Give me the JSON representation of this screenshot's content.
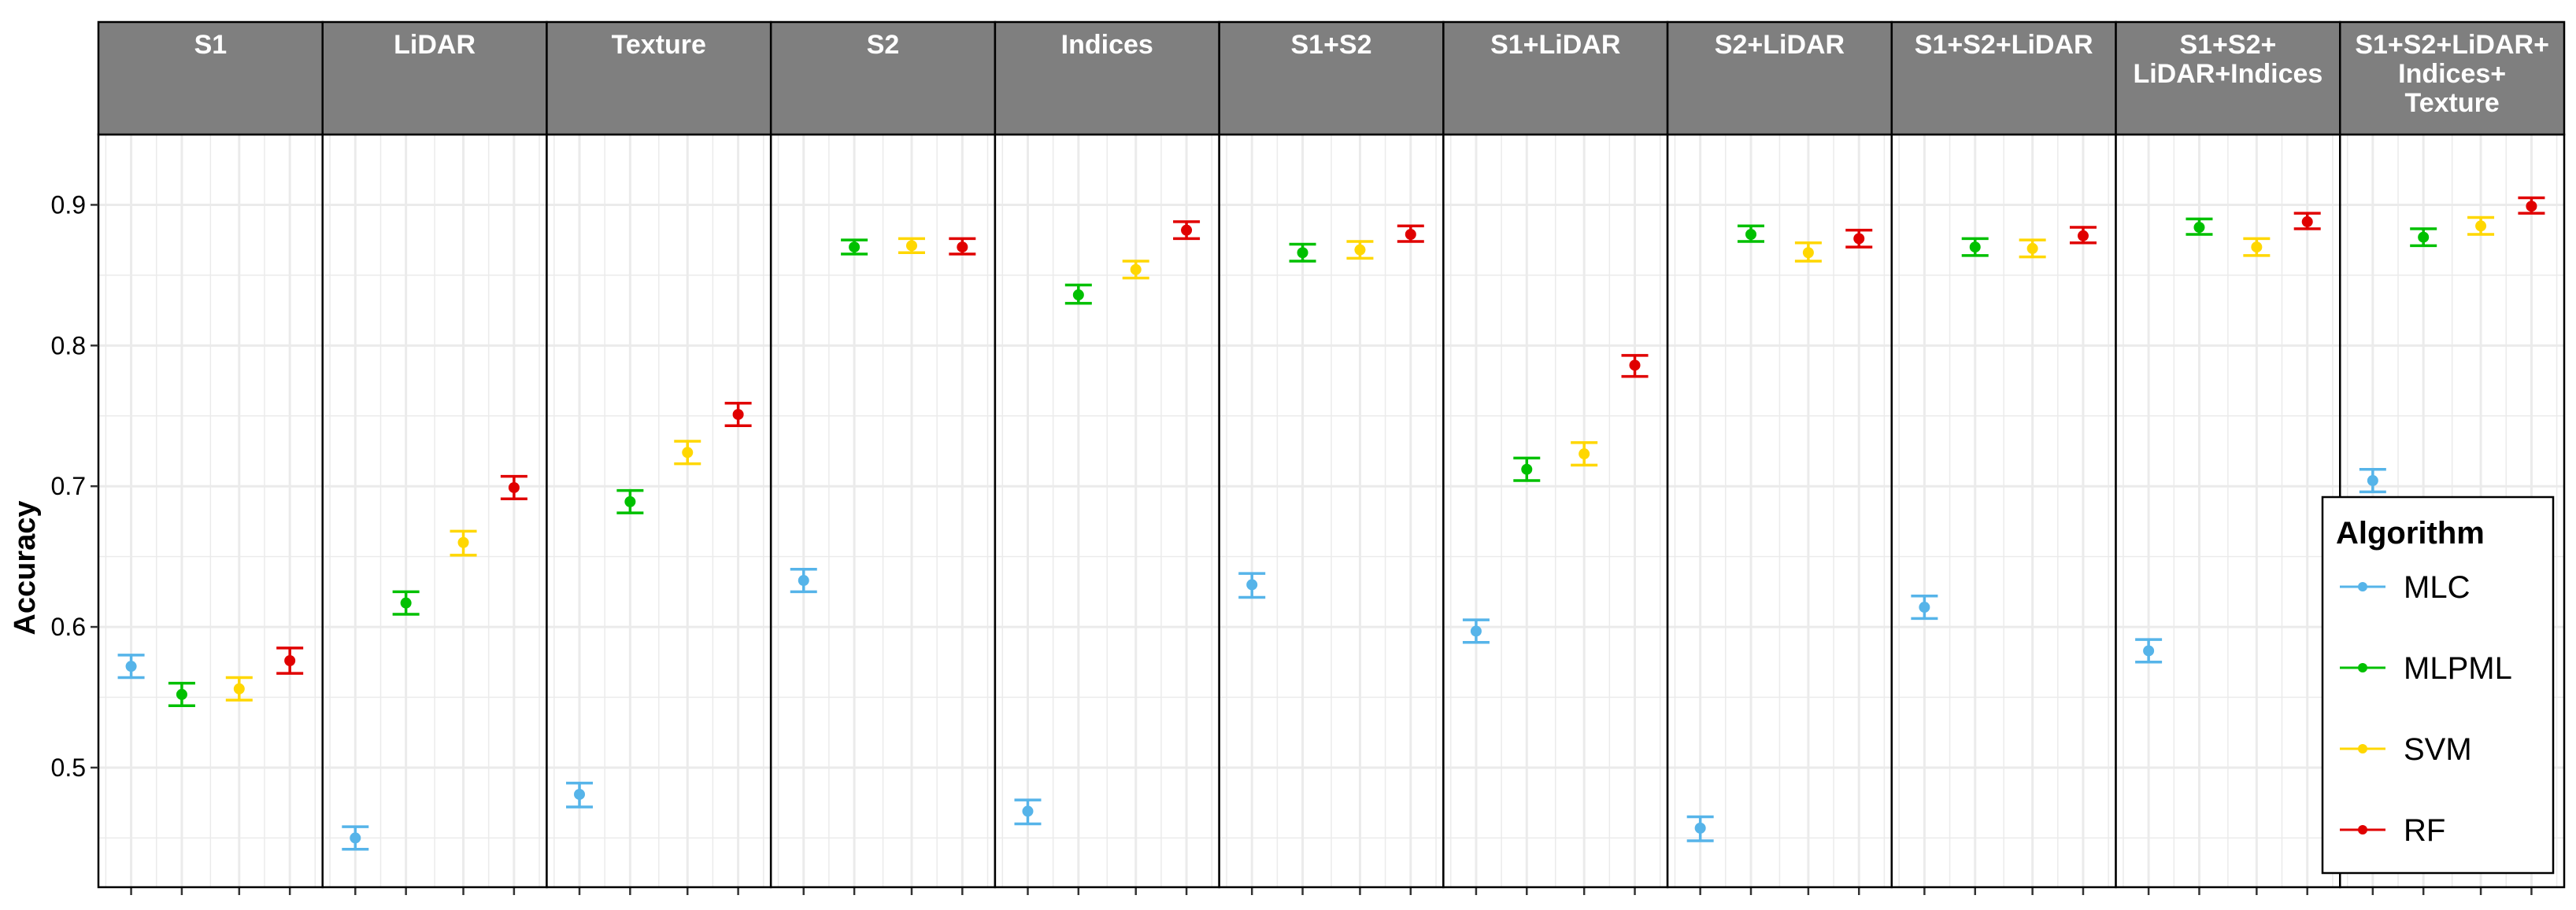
{
  "chart_data": {
    "type": "scatter",
    "ylabel": "Accuracy",
    "ylim": [
      0.415,
      0.95
    ],
    "yticks": [
      0.5,
      0.6,
      0.7,
      0.8,
      0.9
    ],
    "ytick_labels": [
      "0.5",
      "0.6",
      "0.7",
      "0.8",
      "0.9"
    ],
    "error_bars": true,
    "grid": true,
    "legend": {
      "title": "Algorithm",
      "placement": "bottom-right inside"
    },
    "panels": [
      {
        "label": [
          "S1"
        ],
        "values": {
          "MLC": [
            0.572,
            0.564,
            0.58
          ],
          "MLPML": [
            0.552,
            0.544,
            0.56
          ],
          "SVM": [
            0.556,
            0.548,
            0.564
          ],
          "RF": [
            0.576,
            0.567,
            0.585
          ]
        }
      },
      {
        "label": [
          "LiDAR"
        ],
        "values": {
          "MLC": [
            0.45,
            0.442,
            0.458
          ],
          "MLPML": [
            0.617,
            0.609,
            0.625
          ],
          "SVM": [
            0.66,
            0.651,
            0.668
          ],
          "RF": [
            0.699,
            0.691,
            0.707
          ]
        }
      },
      {
        "label": [
          "Texture"
        ],
        "values": {
          "MLC": [
            0.481,
            0.472,
            0.489
          ],
          "MLPML": [
            0.689,
            0.681,
            0.697
          ],
          "SVM": [
            0.724,
            0.716,
            0.732
          ],
          "RF": [
            0.751,
            0.743,
            0.759
          ]
        }
      },
      {
        "label": [
          "S2"
        ],
        "values": {
          "MLC": [
            0.633,
            0.625,
            0.641
          ],
          "MLPML": [
            0.87,
            0.865,
            0.875
          ],
          "SVM": [
            0.871,
            0.866,
            0.876
          ],
          "RF": [
            0.87,
            0.865,
            0.876
          ]
        }
      },
      {
        "label": [
          "Indices"
        ],
        "values": {
          "MLC": [
            0.469,
            0.46,
            0.477
          ],
          "MLPML": [
            0.836,
            0.83,
            0.843
          ],
          "SVM": [
            0.854,
            0.848,
            0.86
          ],
          "RF": [
            0.882,
            0.876,
            0.888
          ]
        }
      },
      {
        "label": [
          "S1+S2"
        ],
        "values": {
          "MLC": [
            0.63,
            0.621,
            0.638
          ],
          "MLPML": [
            0.866,
            0.86,
            0.872
          ],
          "SVM": [
            0.868,
            0.862,
            0.874
          ],
          "RF": [
            0.879,
            0.874,
            0.885
          ]
        }
      },
      {
        "label": [
          "S1+LiDAR"
        ],
        "values": {
          "MLC": [
            0.597,
            0.589,
            0.605
          ],
          "MLPML": [
            0.712,
            0.704,
            0.72
          ],
          "SVM": [
            0.723,
            0.715,
            0.731
          ],
          "RF": [
            0.786,
            0.778,
            0.793
          ]
        }
      },
      {
        "label": [
          "S2+LiDAR"
        ],
        "values": {
          "MLC": [
            0.457,
            0.448,
            0.465
          ],
          "MLPML": [
            0.879,
            0.874,
            0.885
          ],
          "SVM": [
            0.866,
            0.86,
            0.873
          ],
          "RF": [
            0.876,
            0.87,
            0.882
          ]
        }
      },
      {
        "label": [
          "S1+S2+LiDAR"
        ],
        "values": {
          "MLC": [
            0.614,
            0.606,
            0.622
          ],
          "MLPML": [
            0.87,
            0.864,
            0.876
          ],
          "SVM": [
            0.869,
            0.863,
            0.875
          ],
          "RF": [
            0.878,
            0.873,
            0.884
          ]
        }
      },
      {
        "label": [
          "S1+S2+",
          "LiDAR+Indices"
        ],
        "values": {
          "MLC": [
            0.583,
            0.575,
            0.591
          ],
          "MLPML": [
            0.884,
            0.879,
            0.89
          ],
          "SVM": [
            0.87,
            0.864,
            0.876
          ],
          "RF": [
            0.888,
            0.883,
            0.894
          ]
        }
      },
      {
        "label": [
          "S1+S2+LiDAR+",
          "Indices+",
          "Texture"
        ],
        "values": {
          "MLC": [
            0.704,
            0.696,
            0.712
          ],
          "MLPML": [
            0.877,
            0.871,
            0.883
          ],
          "SVM": [
            0.885,
            0.879,
            0.891
          ],
          "RF": [
            0.899,
            0.894,
            0.905
          ]
        }
      }
    ],
    "series": [
      {
        "name": "MLC",
        "color": "#56B4E9"
      },
      {
        "name": "MLPML",
        "color": "#00C000"
      },
      {
        "name": "SVM",
        "color": "#FFD700"
      },
      {
        "name": "RF",
        "color": "#E00000"
      }
    ],
    "colors": {
      "strip_fill": "#7F7F7F",
      "panel_border": "#000000",
      "grid": "#EBEBEB"
    }
  }
}
